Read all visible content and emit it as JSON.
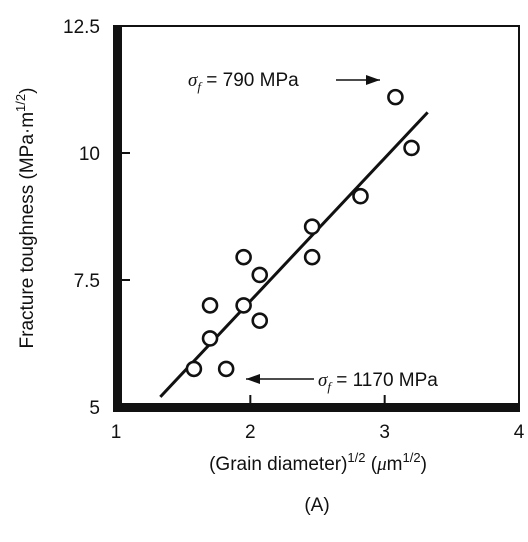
{
  "chart_data": {
    "type": "scatter",
    "title": "",
    "panel_label": "(A)",
    "xlabel": {
      "main": "(Grain diameter)",
      "sup": "1/2",
      "unit_prefix": " (",
      "mu": "μ",
      "unit": "m",
      "unit_sup": "1/2",
      "unit_suffix": ")"
    },
    "ylabel": {
      "main": "Fracture toughness (MPa·m",
      "sup": "1/2",
      "suffix": ")"
    },
    "xlim": [
      1,
      4
    ],
    "ylim": [
      5,
      12.5
    ],
    "x_ticks": [
      1,
      2,
      3,
      4
    ],
    "x_tick_labels": [
      "1",
      "2",
      "3",
      "4"
    ],
    "y_ticks": [
      5,
      7.5,
      10,
      12.5
    ],
    "y_tick_labels": [
      "5",
      "7.5",
      "10",
      "12.5"
    ],
    "grid": false,
    "series": [
      {
        "marker": "open-circle",
        "points": [
          {
            "x": 1.58,
            "y": 5.75
          },
          {
            "x": 1.82,
            "y": 5.75
          },
          {
            "x": 1.7,
            "y": 6.35
          },
          {
            "x": 1.7,
            "y": 7.0
          },
          {
            "x": 1.95,
            "y": 7.0
          },
          {
            "x": 2.07,
            "y": 6.7
          },
          {
            "x": 1.95,
            "y": 7.95
          },
          {
            "x": 2.07,
            "y": 7.6
          },
          {
            "x": 2.46,
            "y": 7.95
          },
          {
            "x": 2.46,
            "y": 8.55
          },
          {
            "x": 2.82,
            "y": 9.15
          },
          {
            "x": 3.08,
            "y": 11.1
          },
          {
            "x": 3.2,
            "y": 10.1
          }
        ]
      }
    ],
    "fit_line": {
      "x": [
        1.33,
        3.32
      ],
      "y": [
        5.2,
        10.8
      ]
    },
    "annotations": [
      {
        "sym": "σ",
        "sub": "f",
        "text": " = 790 MPa",
        "points_to": {
          "x": 3.08,
          "y": 11.1
        }
      },
      {
        "sym": "σ",
        "sub": "f",
        "text": " = 1170 MPa",
        "points_to": {
          "x": 1.82,
          "y": 5.75
        }
      }
    ]
  }
}
